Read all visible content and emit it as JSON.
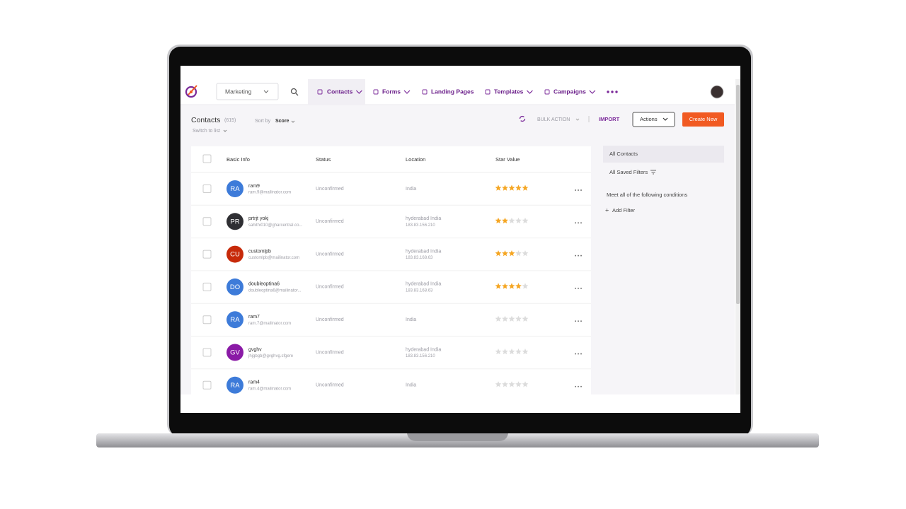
{
  "nav": {
    "module": "Marketing",
    "items": [
      "Contacts",
      "Forms",
      "Landing Pages",
      "Templates",
      "Campaigns"
    ]
  },
  "header": {
    "title": "Contacts",
    "count": "(615)",
    "sort_label": "Sort by",
    "sort_value": "Score",
    "switch": "Switch to list",
    "bulk": "BULK ACTION",
    "import": "IMPORT",
    "actions": "Actions",
    "create": "Create New"
  },
  "table": {
    "columns": [
      "Basic Info",
      "Status",
      "Location",
      "Star Value"
    ],
    "rows": [
      {
        "initials": "RA",
        "color": "#3d7bd9",
        "name": "ram9",
        "email": "ram.9@mailinator.com",
        "status": "Unconfirmed",
        "location": "India",
        "stars": 5
      },
      {
        "initials": "PR",
        "color": "#2f2f33",
        "name": "prtrjt yokj",
        "email": "sahithi010@gharcentral.co...",
        "status": "Unconfirmed",
        "location": "hyderabad India",
        "ip": "183.83.156.210",
        "stars": 2
      },
      {
        "initials": "CU",
        "color": "#c72a0a",
        "name": "customlpb",
        "email": "customlpb@mailinator.com",
        "status": "Unconfirmed",
        "location": "hyderabad India",
        "ip": "183.83.168.63",
        "stars": 3
      },
      {
        "initials": "DO",
        "color": "#3d7bd9",
        "name": "doubleoptina6",
        "email": "doubleoptina6@mailinator...",
        "status": "Unconfirmed",
        "location": "hyderabad India",
        "ip": "183.83.168.63",
        "stars": 4
      },
      {
        "initials": "RA",
        "color": "#3d7bd9",
        "name": "ram7",
        "email": "ram.7@mailinator.com",
        "status": "Unconfirmed",
        "location": "India",
        "stars": 0
      },
      {
        "initials": "GV",
        "color": "#8a1aa6",
        "name": "gvghv",
        "email": "jhjgbgb@gvghvg.sfgere",
        "status": "Unconfirmed",
        "location": "hyderabad India",
        "ip": "183.83.156.210",
        "stars": 0
      },
      {
        "initials": "RA",
        "color": "#3d7bd9",
        "name": "ram4",
        "email": "ram.4@mailinator.com",
        "status": "Unconfirmed",
        "location": "India",
        "stars": 0
      }
    ]
  },
  "sidebar": {
    "items": [
      "All Contacts",
      "All Saved Filters"
    ],
    "conditions": "Meet all of the following conditions",
    "add_filter": "Add Filter"
  }
}
